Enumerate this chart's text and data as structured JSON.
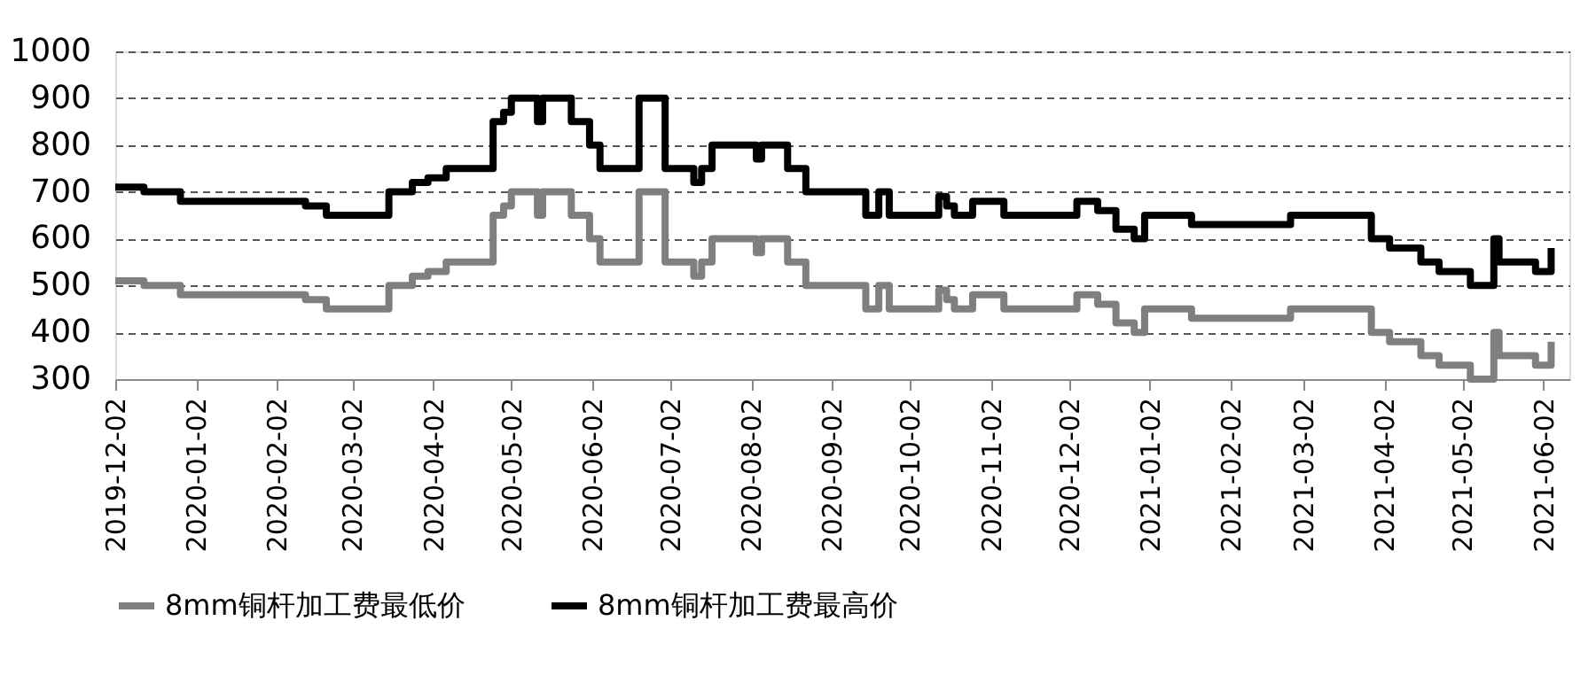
{
  "chart_data": {
    "type": "step",
    "x": [
      "2019-12-02",
      "2019-12-13",
      "2019-12-27",
      "2020-02-13",
      "2020-02-21",
      "2020-03-16",
      "2020-03-25",
      "2020-03-31",
      "2020-04-07",
      "2020-04-25",
      "2020-04-29",
      "2020-05-02",
      "2020-05-12",
      "2020-05-14",
      "2020-05-25",
      "2020-06-01",
      "2020-06-05",
      "2020-06-20",
      "2020-06-30",
      "2020-07-11",
      "2020-07-14",
      "2020-07-18",
      "2020-08-04",
      "2020-08-06",
      "2020-08-16",
      "2020-08-23",
      "2020-09-15",
      "2020-09-20",
      "2020-09-24",
      "2020-10-13",
      "2020-10-16",
      "2020-10-19",
      "2020-10-26",
      "2020-11-07",
      "2020-12-05",
      "2020-12-13",
      "2020-12-20",
      "2020-12-27",
      "2020-12-31",
      "2021-01-18",
      "2021-02-25",
      "2021-03-28",
      "2021-04-04",
      "2021-04-16",
      "2021-04-23",
      "2021-05-05",
      "2021-05-14",
      "2021-05-16",
      "2021-05-30",
      "2021-06-05"
    ],
    "series": [
      {
        "name": "8mm铜杆加工费最低价",
        "color": "#7f7f7f",
        "values": [
          510,
          500,
          480,
          470,
          450,
          500,
          520,
          530,
          550,
          650,
          670,
          700,
          650,
          700,
          650,
          600,
          550,
          700,
          550,
          520,
          550,
          600,
          570,
          600,
          550,
          500,
          450,
          500,
          450,
          490,
          470,
          450,
          480,
          450,
          480,
          460,
          420,
          400,
          450,
          430,
          450,
          400,
          380,
          350,
          330,
          300,
          400,
          350,
          330,
          380
        ]
      },
      {
        "name": "8mm铜杆加工费最高价",
        "color": "#000000",
        "values": [
          710,
          700,
          680,
          670,
          650,
          700,
          720,
          730,
          750,
          850,
          870,
          900,
          850,
          900,
          850,
          800,
          750,
          900,
          750,
          720,
          750,
          800,
          770,
          800,
          750,
          700,
          650,
          700,
          650,
          690,
          670,
          650,
          680,
          650,
          680,
          660,
          620,
          600,
          650,
          630,
          650,
          600,
          580,
          550,
          530,
          500,
          600,
          550,
          530,
          580
        ]
      }
    ],
    "xlim": [
      "2019-12-02",
      "2021-06-12"
    ],
    "xticks": [
      "2019-12-02",
      "2020-01-02",
      "2020-02-02",
      "2020-03-02",
      "2020-04-02",
      "2020-05-02",
      "2020-06-02",
      "2020-07-02",
      "2020-08-02",
      "2020-09-02",
      "2020-10-02",
      "2020-11-02",
      "2020-12-02",
      "2021-01-02",
      "2021-02-02",
      "2021-03-02",
      "2021-04-02",
      "2021-05-02",
      "2021-06-02"
    ],
    "ylim": [
      300,
      1000
    ],
    "yticks": [
      300,
      400,
      500,
      600,
      700,
      800,
      900,
      1000
    ],
    "grid": "y",
    "legend": "bottom",
    "marker": "none",
    "line_style": "solid"
  }
}
